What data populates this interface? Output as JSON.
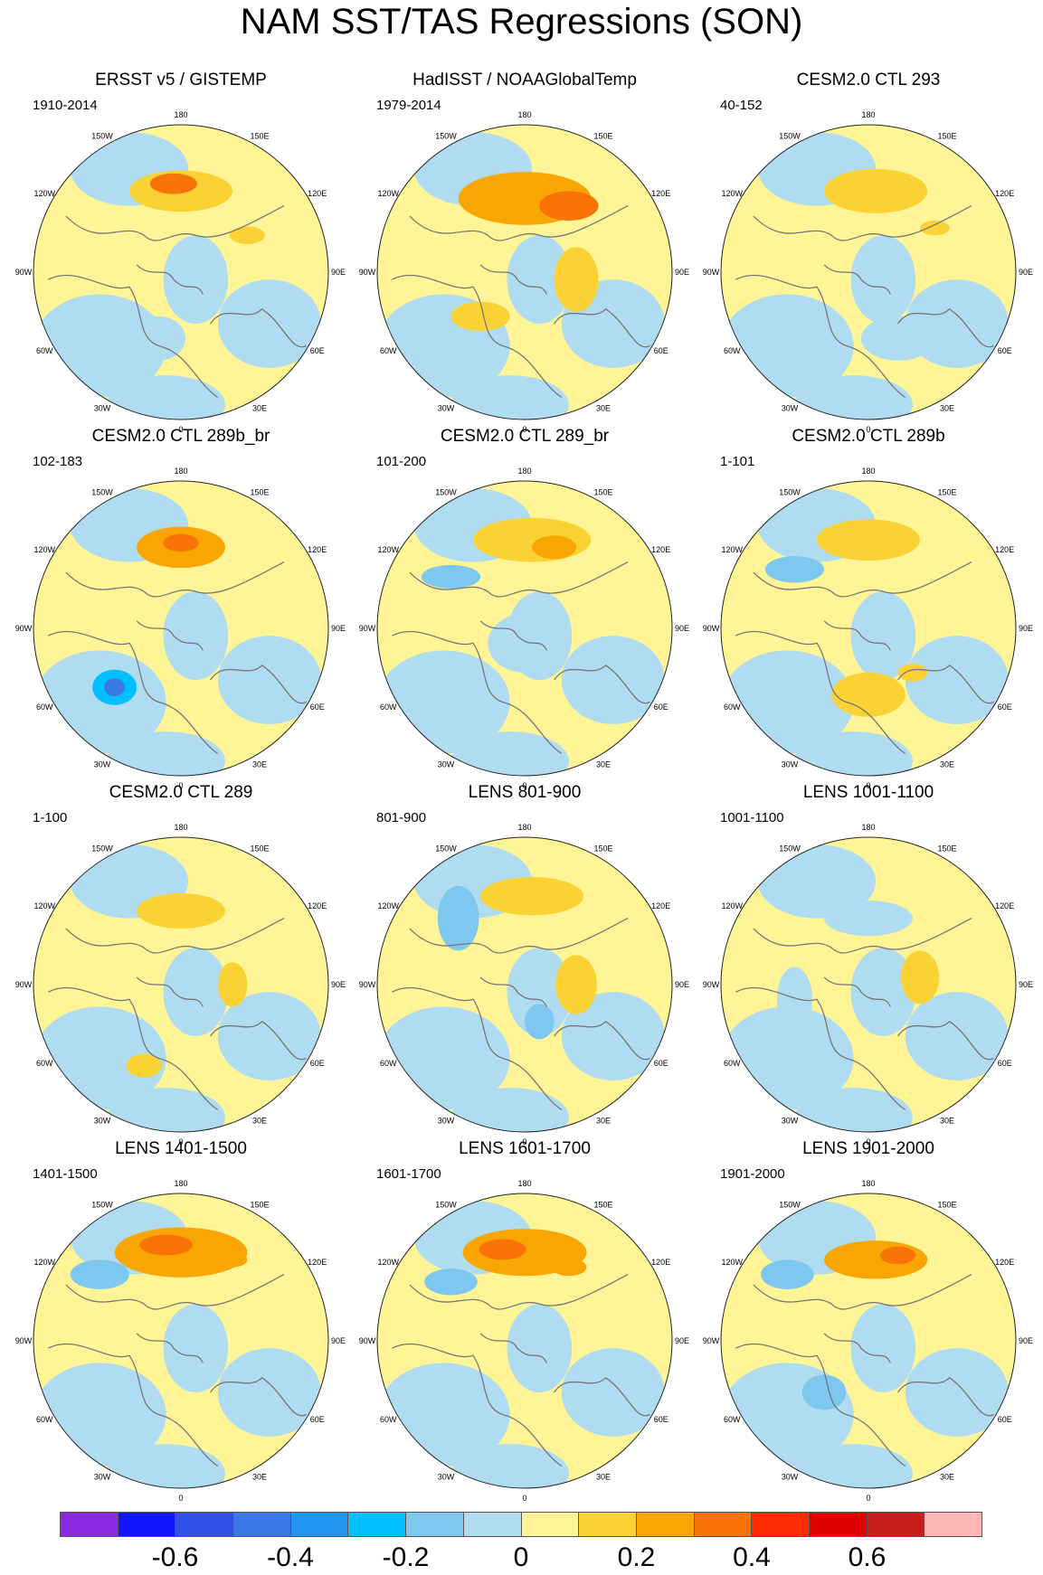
{
  "title": "NAM SST/TAS Regressions (SON)",
  "longitude_labels": [
    "180",
    "150E",
    "120E",
    "90E",
    "60E",
    "30E",
    "0",
    "30W",
    "60W",
    "90W",
    "120W",
    "150W"
  ],
  "panels": [
    {
      "title": "ERSST v5 / GISTEMP",
      "period": "1910-2014"
    },
    {
      "title": "HadISST / NOAAGlobalTemp",
      "period": "1979-2014"
    },
    {
      "title": "CESM2.0 CTL 293",
      "period": "40-152"
    },
    {
      "title": "CESM2.0 CTL 289b_br",
      "period": "102-183"
    },
    {
      "title": "CESM2.0 CTL 289_br",
      "period": "101-200"
    },
    {
      "title": "CESM2.0 CTL 289b",
      "period": "1-101"
    },
    {
      "title": "CESM2.0 CTL 289",
      "period": "1-100"
    },
    {
      "title": "LENS 801-900",
      "period": "801-900"
    },
    {
      "title": "LENS 1001-1100",
      "period": "1001-1100"
    },
    {
      "title": "LENS 1401-1500",
      "period": "1401-1500"
    },
    {
      "title": "LENS 1601-1700",
      "period": "1601-1700"
    },
    {
      "title": "LENS 1901-2000",
      "period": "1901-2000"
    }
  ],
  "colorbar": {
    "colors": [
      "#8a2be2",
      "#1414ff",
      "#3050e8",
      "#3a78e6",
      "#2196f3",
      "#00bfff",
      "#7ec8ef",
      "#b0dcf2",
      "#fff596",
      "#fbd234",
      "#f9a602",
      "#f97306",
      "#ff2b00",
      "#e00000",
      "#c81e1e",
      "#ffb6b6"
    ],
    "tick_labels": [
      "-0.6",
      "-0.4",
      "-0.2",
      "0",
      "0.2",
      "0.4",
      "0.6"
    ]
  }
}
